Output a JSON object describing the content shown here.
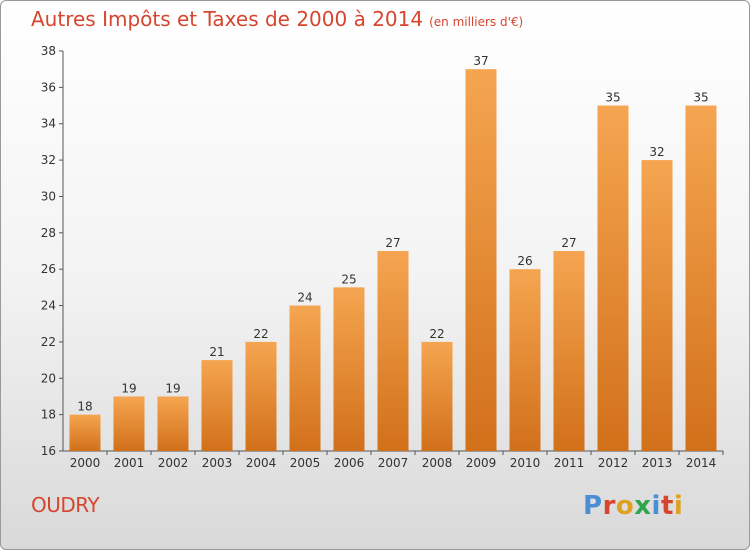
{
  "title": "Autres Impôts et Taxes de 2000 à 2014",
  "unit": "(en milliers d'€)",
  "commune": "OUDRY",
  "logo": "Proxiti",
  "colors": {
    "title": "#d6462f",
    "bar_top": "#f5a550",
    "bar_bottom": "#d2701a",
    "logo_letters": [
      "#4a8fd6",
      "#d6462f",
      "#e0a020",
      "#2ea64a",
      "#4a8fd6",
      "#d6462f",
      "#e0a020"
    ]
  },
  "chart_data": {
    "type": "bar",
    "title": "Autres Impôts et Taxes de 2000 à 2014",
    "subtitle": "(en milliers d'€)",
    "categories": [
      "2000",
      "2001",
      "2002",
      "2003",
      "2004",
      "2005",
      "2006",
      "2007",
      "2008",
      "2009",
      "2010",
      "2011",
      "2012",
      "2013",
      "2014"
    ],
    "values": [
      18,
      19,
      19,
      21,
      22,
      24,
      25,
      27,
      22,
      37,
      26,
      27,
      35,
      32,
      35
    ],
    "ylim": [
      16,
      38
    ],
    "yticks": [
      16,
      18,
      20,
      22,
      24,
      26,
      28,
      30,
      32,
      34,
      36,
      38
    ],
    "grid": false,
    "data_labels": true
  }
}
